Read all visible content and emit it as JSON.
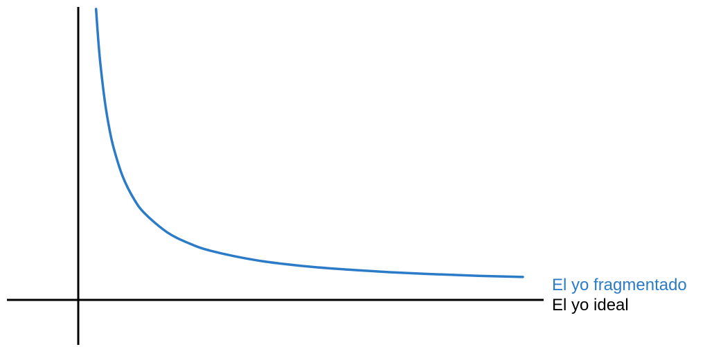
{
  "chart_data": {
    "type": "line",
    "title": "",
    "xlabel": "",
    "ylabel": "",
    "grid": false,
    "curve": {
      "shape": "hyperbolic decay",
      "color": "#2b7bc7",
      "label": "El yo fragmentado",
      "x": [
        0.04,
        0.045,
        0.05,
        0.06,
        0.07,
        0.08,
        0.1,
        0.125,
        0.15,
        0.2,
        0.25,
        0.3,
        0.4,
        0.5,
        0.6,
        0.7,
        0.8,
        0.9,
        1.0
      ],
      "y": [
        1.0,
        0.889,
        0.8,
        0.667,
        0.571,
        0.5,
        0.4,
        0.32,
        0.267,
        0.2,
        0.16,
        0.133,
        0.1,
        0.08,
        0.067,
        0.057,
        0.05,
        0.044,
        0.04
      ]
    },
    "reference_line": {
      "label": "El yo ideal",
      "color": "#000000",
      "y": 0
    },
    "xlim": [
      0,
      1.0
    ],
    "ylim": [
      0,
      1.0
    ]
  }
}
